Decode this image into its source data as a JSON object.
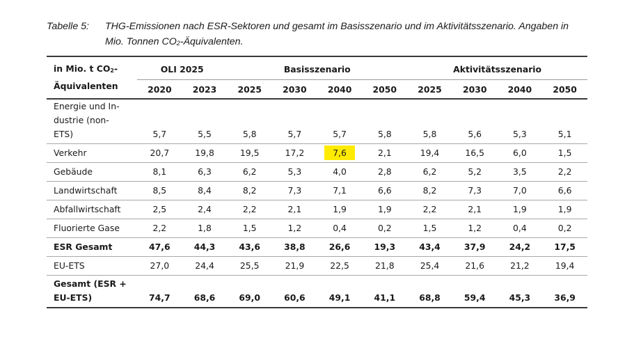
{
  "caption": {
    "label": "Tabelle 5:",
    "text_part1": "THG-Emissionen nach ESR-Sektoren und gesamt im Basisszenario und im Aktivitätsszenario. Angaben in Mio. Tonnen CO",
    "text_sub": "2",
    "text_part2": "-Äquivalenten."
  },
  "table": {
    "row_header": {
      "line1_part1": "in Mio. t CO",
      "line1_sub": "2",
      "line1_part2": "-",
      "line2": "Äquivalenten"
    },
    "groups": [
      {
        "label": "OLI 2025",
        "span": 2
      },
      {
        "label": "Basisszenario",
        "span": 4
      },
      {
        "label": "Aktivitätsszenario",
        "span": 4
      }
    ],
    "years": [
      "2020",
      "2023",
      "2025",
      "2030",
      "2040",
      "2050",
      "2025",
      "2030",
      "2040",
      "2050"
    ],
    "highlight_color": "#ffeb00",
    "rows": [
      {
        "label": "Energie und In-\ndustrie (non-\nETS)",
        "label_lines": [
          "Energie und In-",
          "dustrie (non-",
          "ETS)"
        ],
        "values": [
          "5,7",
          "5,5",
          "5,8",
          "5,7",
          "5,7",
          "5,8",
          "5,8",
          "5,6",
          "5,3",
          "5,1"
        ],
        "bold": false
      },
      {
        "label": "Verkehr",
        "values": [
          "20,7",
          "19,8",
          "19,5",
          "17,2",
          "7,6",
          "2,1",
          "19,4",
          "16,5",
          "6,0",
          "1,5"
        ],
        "bold": false,
        "highlight_index": 4
      },
      {
        "label": "Gebäude",
        "values": [
          "8,1",
          "6,3",
          "6,2",
          "5,3",
          "4,0",
          "2,8",
          "6,2",
          "5,2",
          "3,5",
          "2,2"
        ],
        "bold": false
      },
      {
        "label": "Landwirtschaft",
        "values": [
          "8,5",
          "8,4",
          "8,2",
          "7,3",
          "7,1",
          "6,6",
          "8,2",
          "7,3",
          "7,0",
          "6,6"
        ],
        "bold": false
      },
      {
        "label": "Abfallwirtschaft",
        "values": [
          "2,5",
          "2,4",
          "2,2",
          "2,1",
          "1,9",
          "1,9",
          "2,2",
          "2,1",
          "1,9",
          "1,9"
        ],
        "bold": false
      },
      {
        "label": "Fluorierte Gase",
        "values": [
          "2,2",
          "1,8",
          "1,5",
          "1,2",
          "0,4",
          "0,2",
          "1,5",
          "1,2",
          "0,4",
          "0,2"
        ],
        "bold": false
      },
      {
        "label": "ESR Gesamt",
        "values": [
          "47,6",
          "44,3",
          "43,6",
          "38,8",
          "26,6",
          "19,3",
          "43,4",
          "37,9",
          "24,2",
          "17,5"
        ],
        "bold": true
      },
      {
        "label": "EU-ETS",
        "values": [
          "27,0",
          "24,4",
          "25,5",
          "21,9",
          "22,5",
          "21,8",
          "25,4",
          "21,6",
          "21,2",
          "19,4"
        ],
        "bold": false
      },
      {
        "label": "Gesamt (ESR + EU-ETS)",
        "label_lines": [
          "Gesamt (ESR +",
          "EU-ETS)"
        ],
        "values": [
          "74,7",
          "68,6",
          "69,0",
          "60,6",
          "49,1",
          "41,1",
          "68,8",
          "59,4",
          "45,3",
          "36,9"
        ],
        "bold": true
      }
    ]
  }
}
